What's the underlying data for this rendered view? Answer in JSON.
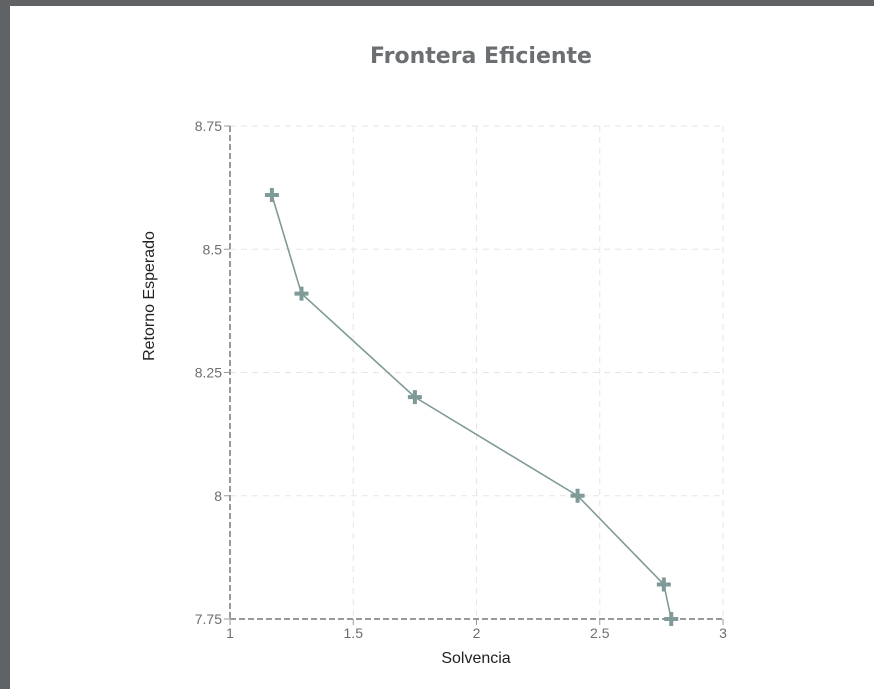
{
  "chart_data": {
    "type": "line",
    "title": "Frontera Eficiente",
    "xlabel": "Solvencia",
    "ylabel": "Retorno Esperado",
    "xlim": [
      1,
      3
    ],
    "ylim": [
      7.75,
      8.75
    ],
    "x_ticks": [
      "1",
      "1.5",
      "2",
      "2.5",
      "3"
    ],
    "y_ticks": [
      "7.75",
      "8",
      "8.25",
      "8.5",
      "8.75"
    ],
    "grid": true,
    "marker": "plus",
    "color": "#7f9a98",
    "series": [
      {
        "x": [
          1.17,
          1.29,
          1.75,
          2.41,
          2.76,
          2.79
        ],
        "y": [
          8.61,
          8.41,
          8.2,
          8.0,
          7.82,
          7.75
        ]
      }
    ]
  }
}
